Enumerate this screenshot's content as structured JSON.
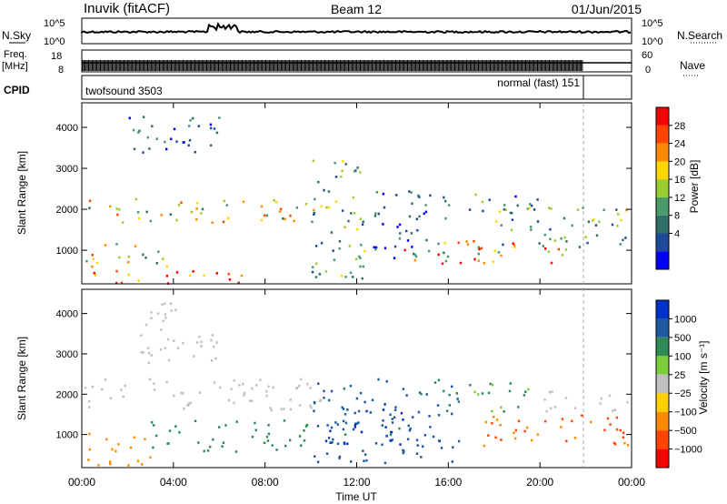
{
  "header": {
    "station": "Inuvik (fitACF)",
    "beam": "Beam 12",
    "date": "01/Jun/2015"
  },
  "strip_panels": {
    "nsky_label": "N.Sky",
    "nsky_ticks": [
      "10^5",
      "10^0"
    ],
    "nsearch_label": "N.Search",
    "nsearch_ticks": [
      "10^5",
      "10^0"
    ],
    "freq_label": "Freq.",
    "freq_unit": "[MHz]",
    "freq_ticks": [
      "18",
      "8"
    ],
    "nave_label": "Nave",
    "nave_ticks": [
      "60",
      "0"
    ],
    "cpid_label": "CPID",
    "cpid_left": "twofsound 3503",
    "cpid_right": "normal (fast) 151"
  },
  "chart_data": [
    {
      "type": "heatmap",
      "panel": "power",
      "xlabel": "Time UT",
      "ylabel": "Slant Range [km]",
      "x_ticks": [
        "00:00",
        "04:00",
        "08:00",
        "12:00",
        "16:00",
        "20:00",
        "00:00"
      ],
      "x_range_hours": [
        0,
        24
      ],
      "y_ticks": [
        1000,
        2000,
        3000,
        4000
      ],
      "y_range_km": [
        180,
        4600
      ],
      "colorbar_label": "Power [dB]",
      "colorbar_ticks": [
        "28",
        "24",
        "20",
        "16",
        "12",
        "8",
        "4"
      ],
      "colorbar_range": [
        0,
        30
      ],
      "colors": [
        "#0000ff",
        "#1e4a9a",
        "#2f6e6a",
        "#4a9a6a",
        "#9acd32",
        "#ffd700",
        "#ff8c00",
        "#ff4500",
        "#ff0000"
      ],
      "regions": [
        {
          "t0": 0.3,
          "t1": 8.0,
          "r0": 200,
          "r1": 520,
          "value": 29
        },
        {
          "t0": 0.1,
          "t1": 4.0,
          "r0": 600,
          "r1": 1200,
          "value": 16
        },
        {
          "t0": 0.1,
          "t1": 10.5,
          "r0": 1700,
          "r1": 2300,
          "value": 17
        },
        {
          "t0": 2.0,
          "t1": 6.0,
          "r0": 3200,
          "r1": 4300,
          "value": 6
        },
        {
          "t0": 10.0,
          "t1": 12.5,
          "r0": 300,
          "r1": 3300,
          "value": 12
        },
        {
          "t0": 12.0,
          "t1": 16.0,
          "r0": 800,
          "r1": 2500,
          "value": 7
        },
        {
          "t0": 14.0,
          "t1": 21.5,
          "r0": 700,
          "r1": 1300,
          "value": 21
        },
        {
          "t0": 16.0,
          "t1": 20.0,
          "r0": 1900,
          "r1": 2400,
          "value": 9
        },
        {
          "t0": 18.0,
          "t1": 23.9,
          "r0": 1100,
          "r1": 2100,
          "value": 11
        },
        {
          "t0": 22.0,
          "t1": 23.9,
          "r0": 1700,
          "r1": 2100,
          "value": 16
        }
      ]
    },
    {
      "type": "heatmap",
      "panel": "velocity",
      "xlabel": "Time UT",
      "ylabel": "Slant Range [km]",
      "x_ticks": [
        "00:00",
        "04:00",
        "08:00",
        "12:00",
        "16:00",
        "20:00",
        "00:00"
      ],
      "x_range_hours": [
        0,
        24
      ],
      "y_ticks": [
        1000,
        2000,
        3000,
        4000
      ],
      "y_range_km": [
        180,
        4600
      ],
      "colorbar_label": "Velocity [m s⁻¹]",
      "colorbar_ticks": [
        "1000",
        "500",
        "100",
        "25",
        "−25",
        "−100",
        "−500",
        "−1000"
      ],
      "colors": [
        "#ff0000",
        "#ff4500",
        "#ff8c00",
        "#ffd000",
        "#c0c0c0",
        "#7ccd3c",
        "#2e8b57",
        "#1e5aa0",
        "#0032c8"
      ],
      "regions": [
        {
          "t0": 0.2,
          "t1": 3.0,
          "r0": 250,
          "r1": 1100,
          "value": -200
        },
        {
          "t0": 0.1,
          "t1": 10.5,
          "r0": 1600,
          "r1": 2400,
          "value": 0
        },
        {
          "t0": 2.5,
          "t1": 6.0,
          "r0": 2800,
          "r1": 4300,
          "value": 0
        },
        {
          "t0": 3.0,
          "t1": 10.0,
          "r0": 600,
          "r1": 1400,
          "value": 150
        },
        {
          "t0": 10.0,
          "t1": 16.5,
          "r0": 300,
          "r1": 2400,
          "value": 400
        },
        {
          "t0": 10.5,
          "t1": 14.0,
          "r0": 700,
          "r1": 1800,
          "value": 800
        },
        {
          "t0": 16.0,
          "t1": 19.5,
          "r0": 1600,
          "r1": 2300,
          "value": 120
        },
        {
          "t0": 17.5,
          "t1": 23.9,
          "r0": 700,
          "r1": 1500,
          "value": -300
        },
        {
          "t0": 20.0,
          "t1": 23.9,
          "r0": 1600,
          "r1": 2100,
          "value": 0
        }
      ]
    }
  ]
}
